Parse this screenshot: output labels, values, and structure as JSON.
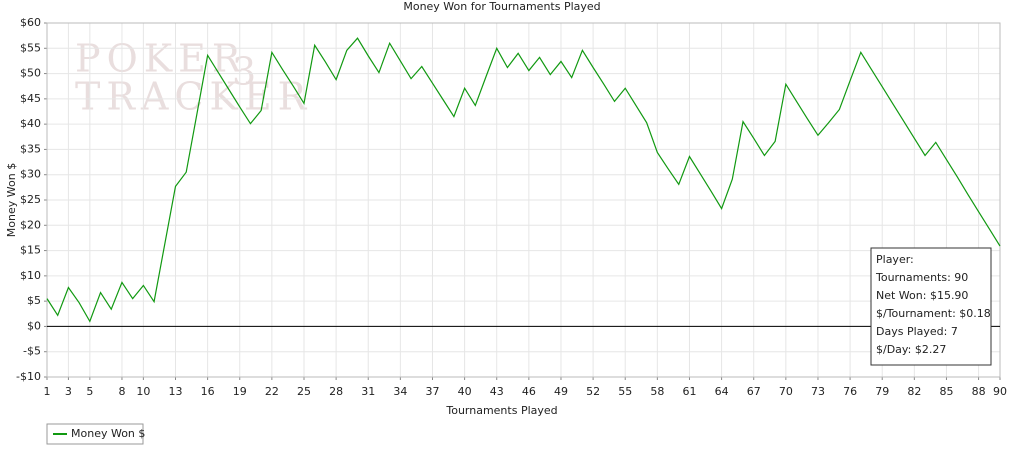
{
  "chart_data": {
    "type": "line",
    "title": "Money Won for Tournaments Played",
    "x_label": "Tournaments Played",
    "y_label": "Money Won $",
    "watermark": [
      "POKER",
      "TRACKER",
      "3"
    ],
    "x": [
      1,
      2,
      3,
      4,
      5,
      6,
      7,
      8,
      9,
      10,
      11,
      12,
      13,
      14,
      15,
      16,
      17,
      18,
      19,
      20,
      21,
      22,
      23,
      24,
      25,
      26,
      27,
      28,
      29,
      30,
      31,
      32,
      33,
      34,
      35,
      36,
      37,
      38,
      39,
      40,
      41,
      42,
      43,
      44,
      45,
      46,
      47,
      48,
      49,
      50,
      51,
      52,
      53,
      54,
      55,
      56,
      57,
      58,
      59,
      60,
      61,
      62,
      63,
      64,
      65,
      66,
      67,
      68,
      69,
      70,
      71,
      72,
      73,
      74,
      75,
      76,
      77,
      78,
      79,
      80,
      81,
      82,
      83,
      84,
      85,
      86,
      87,
      88,
      89,
      90
    ],
    "series": [
      {
        "name": "Money Won $",
        "color": "#119911",
        "values": [
          5.5,
          2.2,
          7.7,
          4.7,
          1.0,
          6.7,
          3.4,
          8.7,
          5.5,
          8.1,
          4.9,
          16.3,
          27.7,
          30.5,
          42.0,
          53.6,
          50.2,
          46.8,
          43.4,
          40.1,
          42.7,
          54.2,
          50.8,
          47.5,
          44.1,
          55.6,
          52.3,
          48.8,
          54.6,
          57.0,
          53.5,
          50.2,
          56.0,
          52.5,
          49.0,
          51.4,
          48.1,
          44.8,
          41.5,
          47.1,
          43.7,
          49.4,
          55.0,
          51.2,
          54.0,
          50.6,
          53.2,
          49.8,
          52.4,
          49.2,
          54.6,
          51.2,
          47.9,
          44.5,
          47.1,
          43.7,
          40.3,
          34.4,
          31.2,
          28.1,
          33.6,
          30.2,
          26.8,
          23.3,
          29.1,
          40.5,
          37.2,
          33.8,
          36.6,
          47.9,
          44.5,
          41.1,
          37.8,
          40.3,
          42.9,
          48.6,
          54.2,
          50.8,
          47.4,
          44.0,
          40.6,
          37.2,
          33.8,
          36.4,
          33.0,
          29.6,
          26.1,
          22.7,
          19.3,
          15.9
        ]
      }
    ],
    "xlim": [
      1,
      90
    ],
    "xticks": [
      1,
      3,
      5,
      8,
      10,
      13,
      16,
      19,
      22,
      25,
      28,
      31,
      34,
      37,
      40,
      43,
      46,
      49,
      52,
      55,
      58,
      61,
      64,
      67,
      70,
      73,
      76,
      79,
      82,
      85,
      88,
      90
    ],
    "ylim": [
      -10,
      60
    ],
    "yticks": [
      {
        "value": -10,
        "label": "-$10"
      },
      {
        "value": -5,
        "label": "-$5"
      },
      {
        "value": 0,
        "label": "$0"
      },
      {
        "value": 5,
        "label": "$5"
      },
      {
        "value": 10,
        "label": "$10"
      },
      {
        "value": 15,
        "label": "$15"
      },
      {
        "value": 20,
        "label": "$20"
      },
      {
        "value": 25,
        "label": "$25"
      },
      {
        "value": 30,
        "label": "$30"
      },
      {
        "value": 35,
        "label": "$35"
      },
      {
        "value": 40,
        "label": "$40"
      },
      {
        "value": 45,
        "label": "$45"
      },
      {
        "value": 50,
        "label": "$50"
      },
      {
        "value": 55,
        "label": "$55"
      },
      {
        "value": 60,
        "label": "$60"
      }
    ],
    "grid": true,
    "legend": "bottom-left",
    "info_box": [
      "Player:",
      "Tournaments: 90",
      "Net Won: $15.90",
      "$/Tournament: $0.18",
      "Days Played: 7",
      "$/Day: $2.27"
    ]
  }
}
